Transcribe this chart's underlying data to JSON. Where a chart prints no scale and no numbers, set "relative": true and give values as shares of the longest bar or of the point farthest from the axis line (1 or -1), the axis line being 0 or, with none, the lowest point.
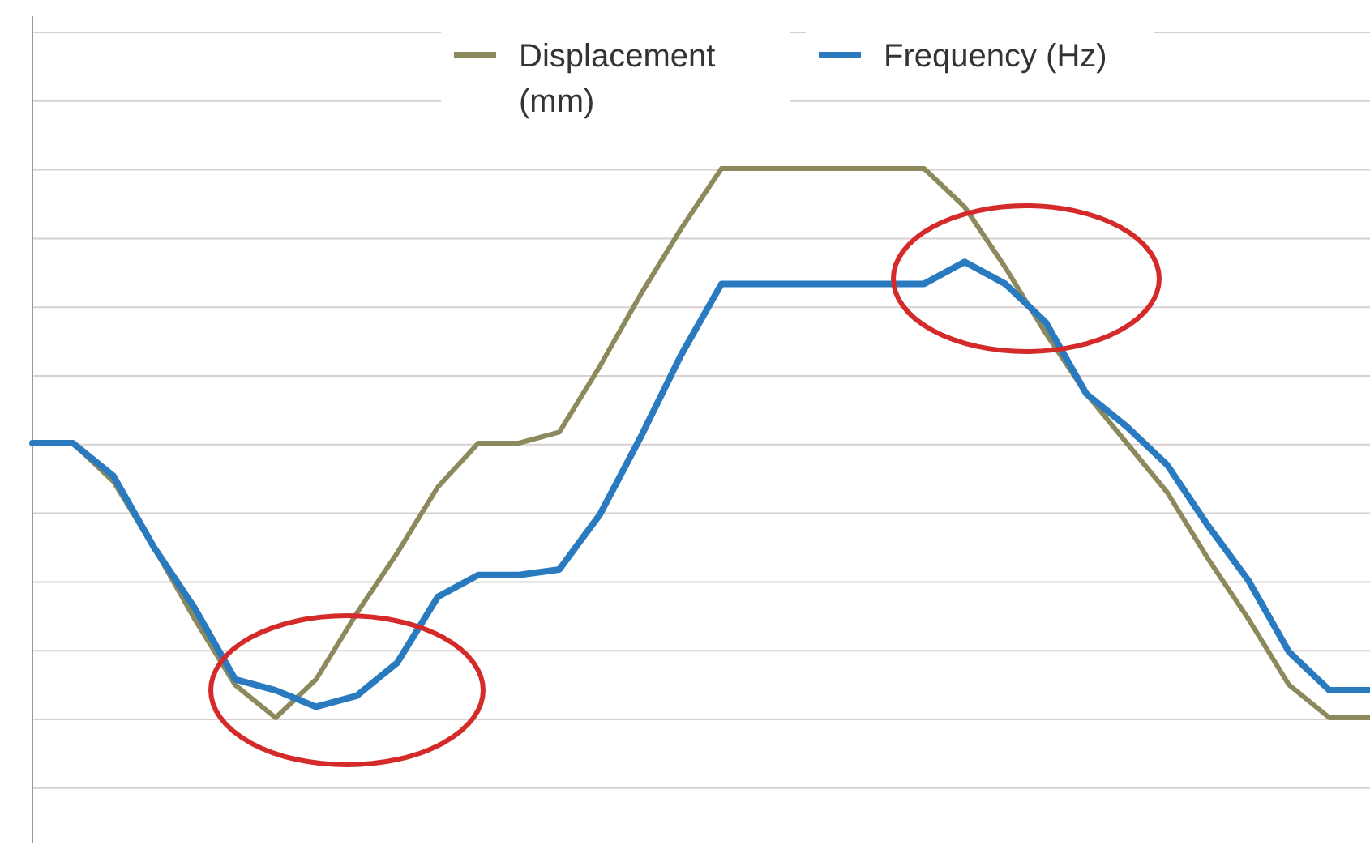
{
  "chart_data": {
    "type": "line",
    "relative": true,
    "grid": "y",
    "legend": "top",
    "line_style": "solid",
    "categories": [
      null,
      null,
      null,
      null,
      null,
      null,
      null,
      null,
      null,
      null,
      null,
      null,
      null,
      null,
      null,
      null,
      null,
      null,
      null,
      null,
      null,
      null,
      null,
      null,
      null,
      null,
      null,
      null,
      null,
      null,
      null,
      null,
      null,
      null
    ],
    "series": [
      {
        "name": "Displacement (mm)",
        "color": "#8c8a5c",
        "values": [
          0.5,
          0.5,
          0.43,
          0.31,
          0.18,
          0.06,
          0,
          0.07,
          0.19,
          0.3,
          0.42,
          0.5,
          0.5,
          0.52,
          0.64,
          0.77,
          0.89,
          1,
          1,
          1,
          1,
          1,
          1,
          0.93,
          0.82,
          0.7,
          0.59,
          0.5,
          0.41,
          0.29,
          0.18,
          0.06,
          0,
          0
        ]
      },
      {
        "name": "Frequency (Hz)",
        "color": "#2a7ac0",
        "values": [
          0.5,
          0.5,
          0.44,
          0.31,
          0.2,
          0.07,
          0.05,
          0.02,
          0.04,
          0.1,
          0.22,
          0.26,
          0.26,
          0.27,
          0.37,
          0.51,
          0.66,
          0.79,
          0.79,
          0.79,
          0.79,
          0.79,
          0.79,
          0.83,
          0.79,
          0.72,
          0.59,
          0.53,
          0.46,
          0.35,
          0.25,
          0.12,
          0.05,
          0.05
        ]
      }
    ]
  }
}
